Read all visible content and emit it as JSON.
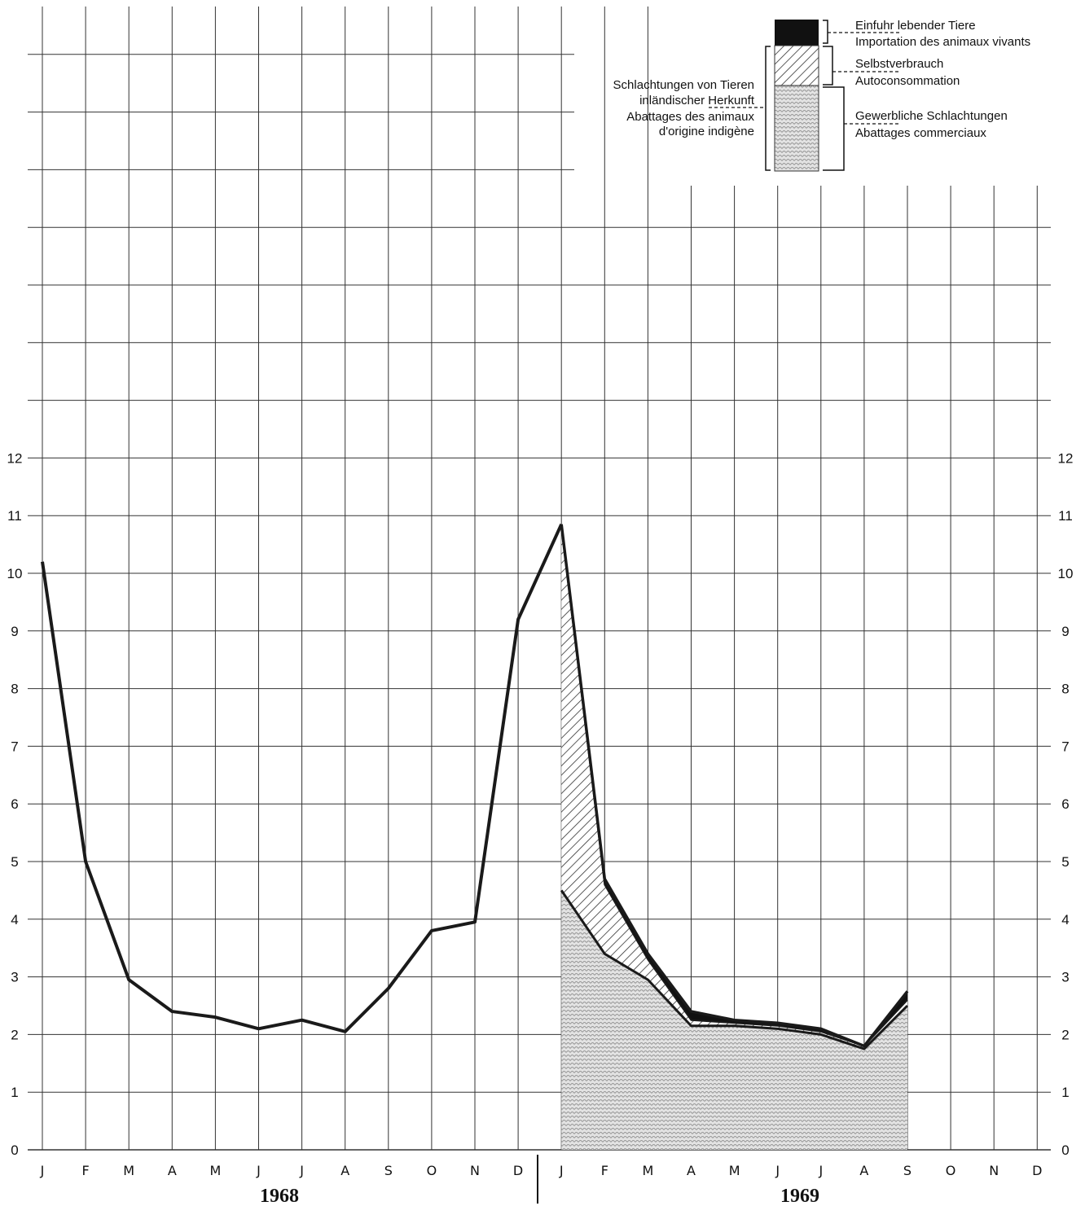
{
  "chart_data": {
    "type": "area",
    "title": "",
    "xlabel": "",
    "ylabel": "",
    "ylim": [
      0,
      12
    ],
    "yticks": [
      0,
      1,
      2,
      3,
      4,
      5,
      6,
      7,
      8,
      9,
      10,
      11,
      12
    ],
    "grid": true,
    "legend_position": "top-right",
    "years": [
      "1968",
      "1969"
    ],
    "months": [
      "J",
      "F",
      "M",
      "A",
      "M",
      "J",
      "J",
      "A",
      "S",
      "O",
      "N",
      "D",
      "J",
      "F",
      "M",
      "A",
      "M",
      "J",
      "J",
      "A",
      "S",
      "O",
      "N",
      "D"
    ],
    "colors": {
      "line": "#1a1a1a",
      "grid": "#333333",
      "import": "#111111",
      "hatch": "#333333",
      "commercial": "#cfcfcf"
    },
    "legend": {
      "import": {
        "de": "Einfuhr lebender Tiere",
        "fr": "Importation des animaux vivants"
      },
      "selfcons": {
        "de": "Selbstverbrauch",
        "fr": "Autoconsommation"
      },
      "commercial": {
        "de": "Gewerbliche Schlachtungen",
        "fr": "Abattages commerciaux"
      },
      "domestic": {
        "de_line1": "Schlachtungen von Tieren",
        "de_line2": "inländischer Herkunft",
        "fr_line1": "Abattages des animaux",
        "fr_line2": "d'origine indigène"
      }
    },
    "series_1968_total": [
      10.2,
      5.0,
      2.95,
      2.4,
      2.3,
      2.1,
      2.25,
      2.05,
      2.8,
      3.8,
      3.95,
      9.2
    ],
    "series_1969": {
      "months_index": [
        12,
        13,
        14,
        15,
        16,
        17,
        18,
        19,
        20
      ],
      "commercial": [
        4.5,
        3.4,
        2.95,
        2.15,
        2.15,
        2.1,
        2.0,
        1.75,
        2.5
      ],
      "domestic": [
        10.8,
        4.6,
        3.3,
        2.25,
        2.2,
        2.15,
        2.05,
        1.8,
        2.6
      ],
      "total": [
        10.85,
        4.7,
        3.4,
        2.4,
        2.25,
        2.2,
        2.1,
        1.8,
        2.75
      ]
    }
  }
}
